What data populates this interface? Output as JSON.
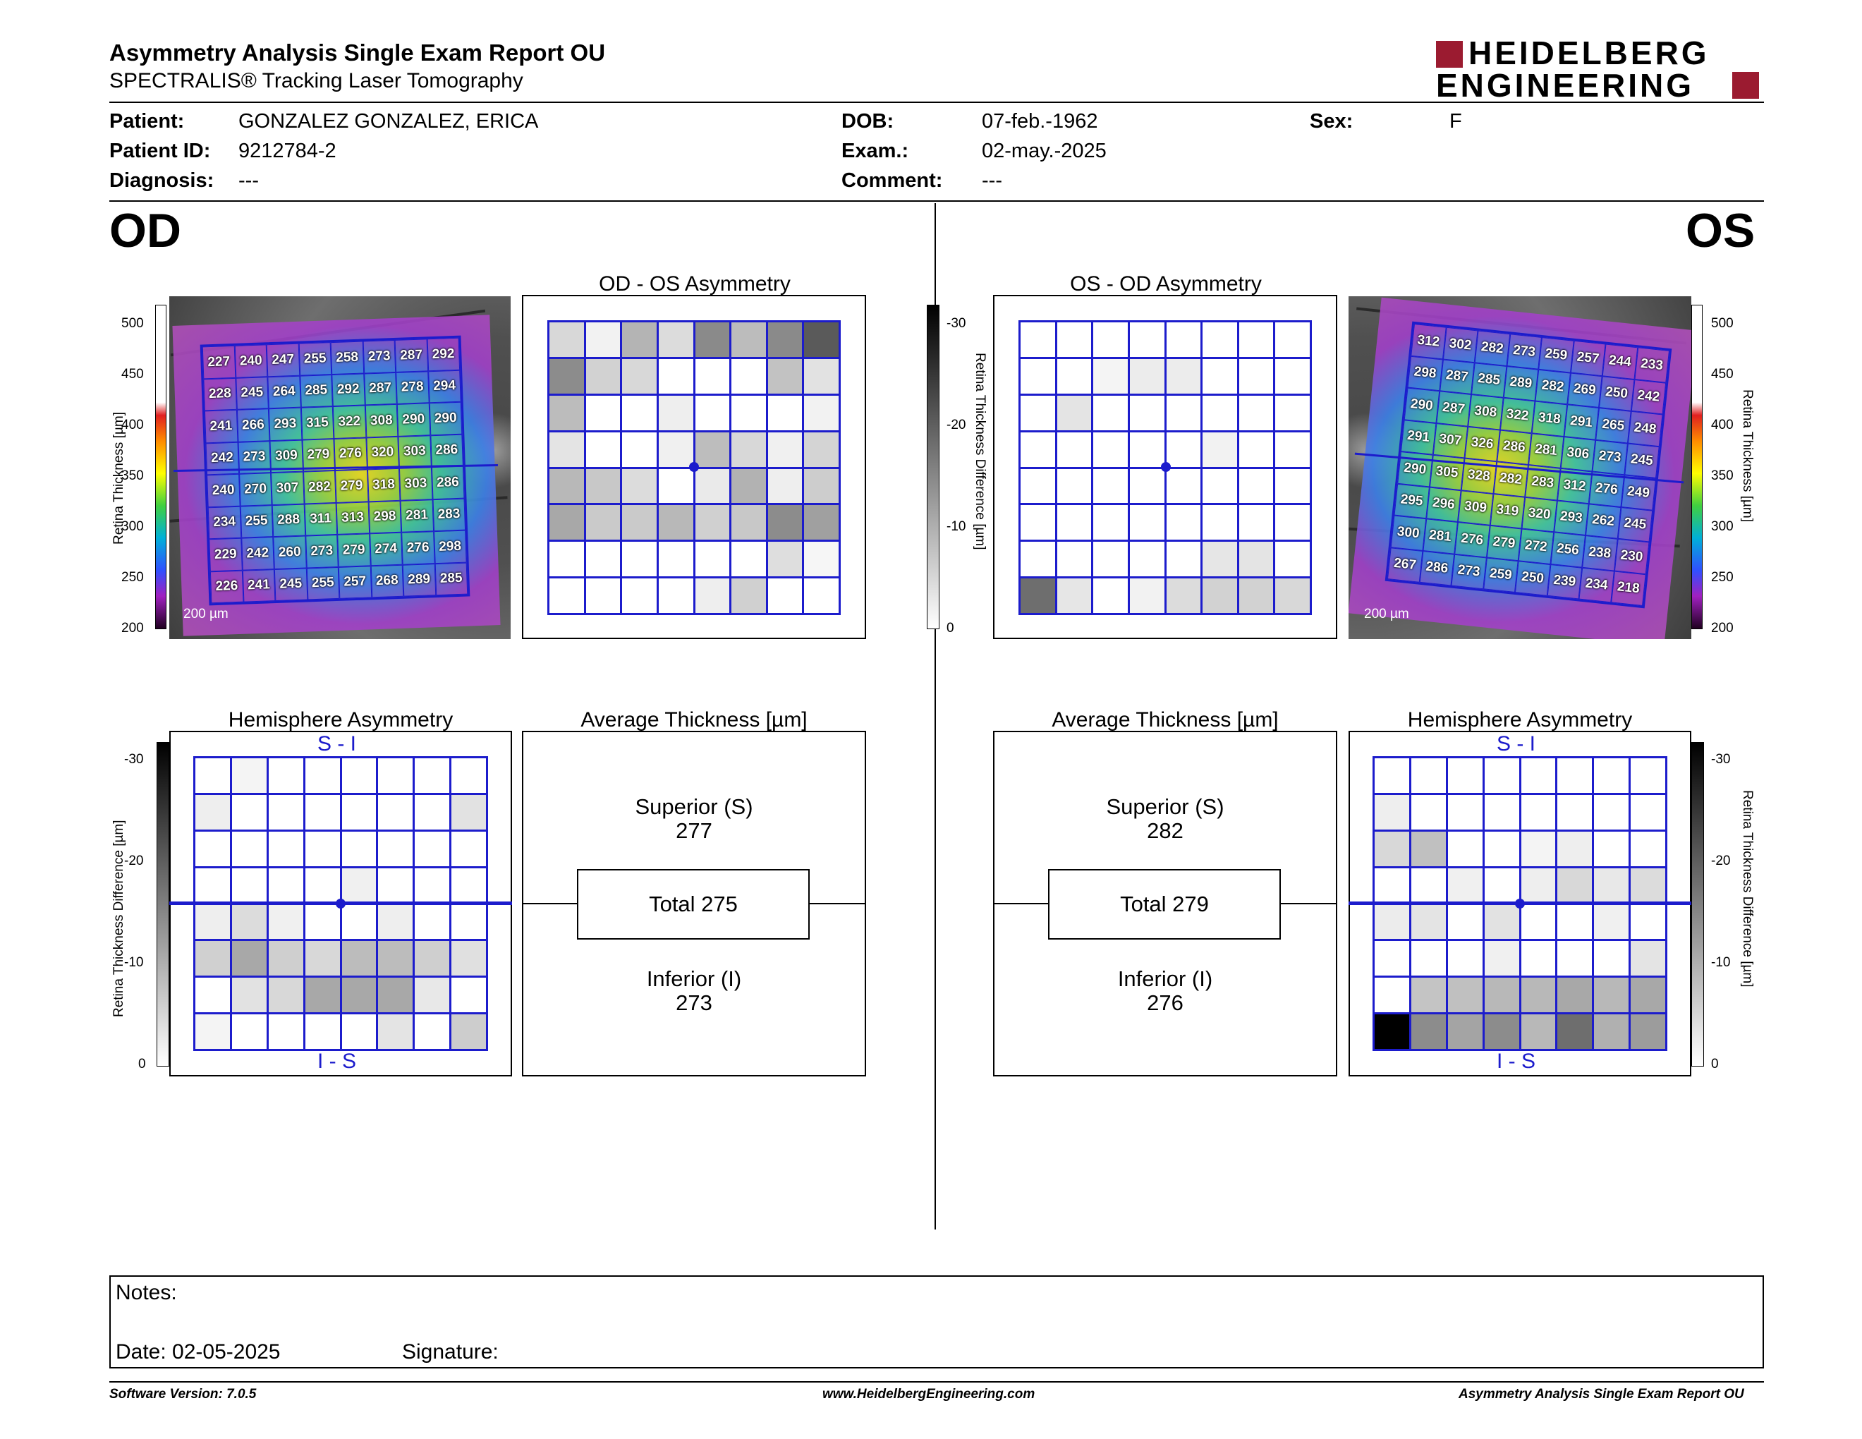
{
  "header": {
    "title": "Asymmetry Analysis Single Exam Report OU",
    "subtitle": "SPECTRALIS® Tracking Laser Tomography",
    "logo_line1": "HEIDELBERG",
    "logo_line2": "ENGINEERING"
  },
  "patient": {
    "patient_label": "Patient:",
    "patient_value": "GONZALEZ GONZALEZ, ERICA",
    "id_label": "Patient ID:",
    "id_value": "9212784-2",
    "diagnosis_label": "Diagnosis:",
    "diagnosis_value": "---",
    "dob_label": "DOB:",
    "dob_value": "07-feb.-1962",
    "exam_label": "Exam.:",
    "exam_value": "02-may.-2025",
    "comment_label": "Comment:",
    "comment_value": "---",
    "sex_label": "Sex:",
    "sex_value": "F"
  },
  "eyes": {
    "od": "OD",
    "os": "OS"
  },
  "thickness_scale": {
    "label": "Retina Thickness [µm]",
    "ticks": [
      "500",
      "450",
      "400",
      "350",
      "300",
      "250",
      "200"
    ]
  },
  "diff_scale": {
    "label": "Retina Thickness Difference [µm]",
    "ticks": [
      "-30",
      "-20",
      "-10",
      "0"
    ]
  },
  "scale_bar": "200 µm",
  "od": {
    "thickness_grid": [
      [
        "227",
        "240",
        "247",
        "255",
        "258",
        "273",
        "287",
        "292"
      ],
      [
        "228",
        "245",
        "264",
        "285",
        "292",
        "287",
        "278",
        "294"
      ],
      [
        "241",
        "266",
        "293",
        "315",
        "322",
        "308",
        "290",
        "290"
      ],
      [
        "242",
        "273",
        "309",
        "279",
        "276",
        "320",
        "303",
        "286"
      ],
      [
        "240",
        "270",
        "307",
        "282",
        "279",
        "318",
        "303",
        "286"
      ],
      [
        "234",
        "255",
        "288",
        "311",
        "313",
        "298",
        "281",
        "283"
      ],
      [
        "229",
        "242",
        "260",
        "273",
        "279",
        "274",
        "276",
        "298"
      ],
      [
        "226",
        "241",
        "245",
        "255",
        "257",
        "268",
        "289",
        "285"
      ]
    ],
    "asymmetry_title": "OD - OS Asymmetry",
    "asymmetry_gray": [
      [
        "#d8d8d8",
        "#f2f2f2",
        "#b4b4b4",
        "#dcdcdc",
        "#8a8a8a",
        "#bcbcbc",
        "#8a8a8a",
        "#5a5a5a"
      ],
      [
        "#8c8c8c",
        "#d2d2d2",
        "#d8d8d8",
        "#ffffff",
        "#ffffff",
        "#ffffff",
        "#c2c2c2",
        "#e2e2e2"
      ],
      [
        "#bcbcbc",
        "#ffffff",
        "#ffffff",
        "#eeeeee",
        "#ffffff",
        "#ffffff",
        "#ffffff",
        "#f2f2f2"
      ],
      [
        "#e4e4e4",
        "#ffffff",
        "#ffffff",
        "#f0f0f0",
        "#bdbdbd",
        "#d8d8d8",
        "#f0f0f0",
        "#d4d4d4"
      ],
      [
        "#b8b8b8",
        "#c8c8c8",
        "#dcdcdc",
        "#ffffff",
        "#eaeaea",
        "#b2b2b2",
        "#eeeeee",
        "#cdcdcd"
      ],
      [
        "#a8a8a8",
        "#cacaca",
        "#cacaca",
        "#b8b8b8",
        "#d0d0d0",
        "#c8c8c8",
        "#8c8c8c",
        "#a0a0a0"
      ],
      [
        "#ffffff",
        "#ffffff",
        "#ffffff",
        "#ffffff",
        "#ffffff",
        "#ffffff",
        "#dedede",
        "#f6f6f6"
      ],
      [
        "#ffffff",
        "#ffffff",
        "#ffffff",
        "#ffffff",
        "#eeeeee",
        "#d0d0d0",
        "#ffffff",
        "#ffffff"
      ]
    ],
    "hemisphere_title": "Hemisphere Asymmetry",
    "hemi_top": "S - I",
    "hemi_bottom": "I - S",
    "hemi_gray": [
      [
        "#ffffff",
        "#f4f4f4",
        "#ffffff",
        "#ffffff",
        "#ffffff",
        "#ffffff",
        "#ffffff",
        "#ffffff"
      ],
      [
        "#eeeeee",
        "#ffffff",
        "#ffffff",
        "#ffffff",
        "#ffffff",
        "#ffffff",
        "#ffffff",
        "#e2e2e2"
      ],
      [
        "#ffffff",
        "#ffffff",
        "#ffffff",
        "#ffffff",
        "#ffffff",
        "#ffffff",
        "#ffffff",
        "#ffffff"
      ],
      [
        "#ffffff",
        "#ffffff",
        "#ffffff",
        "#ffffff",
        "#f0f0f0",
        "#ffffff",
        "#ffffff",
        "#ffffff"
      ],
      [
        "#eeeeee",
        "#dcdcdc",
        "#f0f0f0",
        "#ffffff",
        "#ffffff",
        "#eeeeee",
        "#ffffff",
        "#ffffff"
      ],
      [
        "#d0d0d0",
        "#a8a8a8",
        "#cfcfcf",
        "#d8d8d8",
        "#bcbcbc",
        "#bcbcbc",
        "#cfcfcf",
        "#e0e0e0"
      ],
      [
        "#ffffff",
        "#e2e2e2",
        "#d8d8d8",
        "#a8a8a8",
        "#a8a8a8",
        "#a8a8a8",
        "#e8e8e8",
        "#ffffff"
      ],
      [
        "#f4f4f4",
        "#ffffff",
        "#ffffff",
        "#ffffff",
        "#ffffff",
        "#e4e4e4",
        "#ffffff",
        "#cdcdcd"
      ]
    ],
    "avg_title": "Average Thickness [µm]",
    "superior_label": "Superior (S)",
    "superior_value": "277",
    "total": "Total 275",
    "inferior_label": "Inferior (I)",
    "inferior_value": "273"
  },
  "os": {
    "thickness_grid": [
      [
        "312",
        "302",
        "282",
        "273",
        "259",
        "257",
        "244",
        "233"
      ],
      [
        "298",
        "287",
        "285",
        "289",
        "282",
        "269",
        "250",
        "242"
      ],
      [
        "290",
        "287",
        "308",
        "322",
        "318",
        "291",
        "265",
        "248"
      ],
      [
        "291",
        "307",
        "326",
        "286",
        "281",
        "306",
        "273",
        "245"
      ],
      [
        "290",
        "305",
        "328",
        "282",
        "283",
        "312",
        "276",
        "249"
      ],
      [
        "295",
        "296",
        "309",
        "319",
        "320",
        "293",
        "262",
        "245"
      ],
      [
        "300",
        "281",
        "276",
        "279",
        "272",
        "256",
        "238",
        "230"
      ],
      [
        "267",
        "286",
        "273",
        "259",
        "250",
        "239",
        "234",
        "218"
      ]
    ],
    "asymmetry_title": "OS - OD Asymmetry",
    "asymmetry_gray": [
      [
        "#ffffff",
        "#ffffff",
        "#ffffff",
        "#ffffff",
        "#ffffff",
        "#ffffff",
        "#ffffff",
        "#ffffff"
      ],
      [
        "#ffffff",
        "#ffffff",
        "#f4f4f4",
        "#ececec",
        "#ececec",
        "#ffffff",
        "#ffffff",
        "#ffffff"
      ],
      [
        "#ffffff",
        "#e4e4e4",
        "#ffffff",
        "#ffffff",
        "#ffffff",
        "#ffffff",
        "#ffffff",
        "#ffffff"
      ],
      [
        "#ffffff",
        "#ffffff",
        "#ffffff",
        "#ffffff",
        "#ffffff",
        "#f2f2f2",
        "#ffffff",
        "#ffffff"
      ],
      [
        "#ffffff",
        "#ffffff",
        "#ffffff",
        "#ffffff",
        "#ffffff",
        "#ffffff",
        "#ffffff",
        "#ffffff"
      ],
      [
        "#ffffff",
        "#ffffff",
        "#ffffff",
        "#ffffff",
        "#ffffff",
        "#ffffff",
        "#ffffff",
        "#ffffff"
      ],
      [
        "#ffffff",
        "#ffffff",
        "#ffffff",
        "#ffffff",
        "#ffffff",
        "#e6e6e6",
        "#e4e4e4",
        "#ffffff"
      ],
      [
        "#6e6e6e",
        "#e6e6e6",
        "#ffffff",
        "#f2f2f2",
        "#dcdcdc",
        "#d2d2d2",
        "#d2d2d2",
        "#d8d8d8"
      ]
    ],
    "hemisphere_title": "Hemisphere Asymmetry",
    "hemi_top": "S - I",
    "hemi_bottom": "I - S",
    "hemi_gray": [
      [
        "#ffffff",
        "#ffffff",
        "#ffffff",
        "#ffffff",
        "#ffffff",
        "#ffffff",
        "#ffffff",
        "#ffffff"
      ],
      [
        "#eeeeee",
        "#ffffff",
        "#ffffff",
        "#ffffff",
        "#ffffff",
        "#ffffff",
        "#ffffff",
        "#ffffff"
      ],
      [
        "#d8d8d8",
        "#c0c0c0",
        "#ffffff",
        "#ffffff",
        "#f4f4f4",
        "#eeeeee",
        "#ffffff",
        "#ffffff"
      ],
      [
        "#ffffff",
        "#ffffff",
        "#f0f0f0",
        "#ffffff",
        "#eeeeee",
        "#d8d8d8",
        "#e8e8e8",
        "#dcdcdc"
      ],
      [
        "#ececec",
        "#e4e4e4",
        "#ffffff",
        "#e2e2e2",
        "#ffffff",
        "#ffffff",
        "#f0f0f0",
        "#ffffff"
      ],
      [
        "#ffffff",
        "#ffffff",
        "#ffffff",
        "#f0f0f0",
        "#ffffff",
        "#ffffff",
        "#ffffff",
        "#e4e4e4"
      ],
      [
        "#ffffff",
        "#c4c4c4",
        "#c0c0c0",
        "#b8b8b8",
        "#b8b8b8",
        "#a8a8a8",
        "#b8b8b8",
        "#a8a8a8"
      ],
      [
        "#000000",
        "#8c8c8c",
        "#a4a4a4",
        "#8c8c8c",
        "#b8b8b8",
        "#6e6e6e",
        "#b0b0b0",
        "#9c9c9c"
      ]
    ],
    "avg_title": "Average Thickness [µm]",
    "superior_label": "Superior (S)",
    "superior_value": "282",
    "total": "Total 279",
    "inferior_label": "Inferior (I)",
    "inferior_value": "276"
  },
  "notes": {
    "notes_label": "Notes:",
    "date_label": "Date: 02-05-2025",
    "signature_label": "Signature:"
  },
  "footer": {
    "software": "Software Version: 7.0.5",
    "website": "www.HeidelbergEngineering.com",
    "report": "Asymmetry Analysis Single Exam Report OU"
  },
  "colors": {
    "grid_blue": "#1c1ccc",
    "logo_red": "#9b1b30"
  }
}
